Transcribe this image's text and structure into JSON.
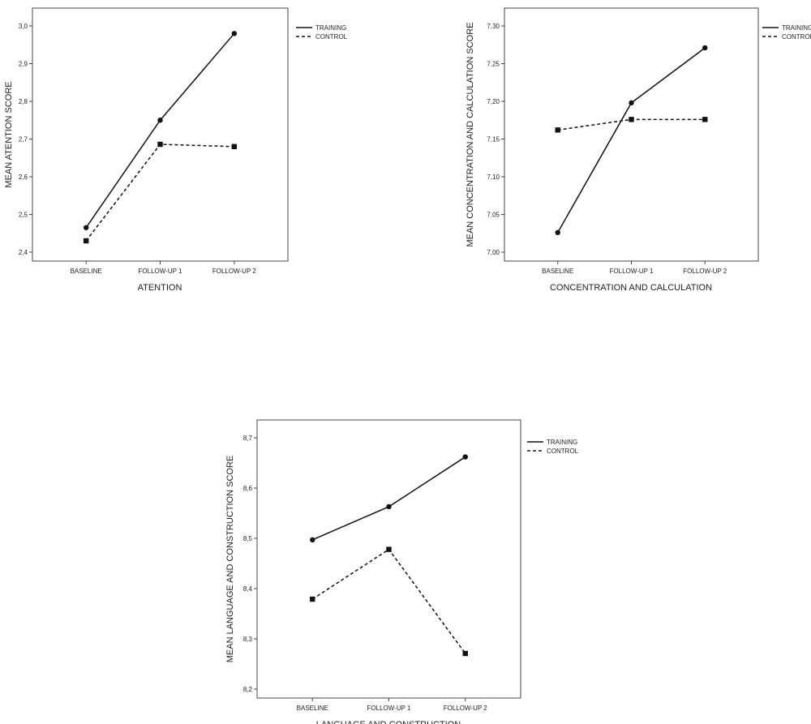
{
  "chart_data": [
    {
      "type": "line",
      "categories": [
        "BASELINE",
        "FOLLOW-UP 1",
        "FOLLOW-UP 2"
      ],
      "series": [
        {
          "name": "TRAINING",
          "values": [
            2.465,
            2.75,
            2.98
          ],
          "line_style": "solid",
          "marker": "circle"
        },
        {
          "name": "CONTROL",
          "values": [
            2.43,
            2.686,
            2.68
          ],
          "line_style": "dashed",
          "marker": "square"
        }
      ],
      "title": "",
      "xlabel": "ATENTION",
      "ylabel": "MEAN ATENTION SCORE",
      "ylim": [
        2.4,
        3.0
      ],
      "yticks": [
        "2,4",
        "2,5",
        "2,6",
        "2,7",
        "2,8",
        "2,9",
        "3,0"
      ],
      "legend_position": "right",
      "grid": false
    },
    {
      "type": "line",
      "categories": [
        "BASELINE",
        "FOLLOW-UP 1",
        "FOLLOW-UP 2"
      ],
      "series": [
        {
          "name": "TRAINING",
          "values": [
            7.026,
            7.198,
            7.271
          ],
          "line_style": "solid",
          "marker": "circle"
        },
        {
          "name": "CONTROL",
          "values": [
            7.162,
            7.176,
            7.176
          ],
          "line_style": "dashed",
          "marker": "square"
        }
      ],
      "title": "",
      "xlabel": "CONCENTRATION AND CALCULATION",
      "ylabel": "MEAN CONCENTRATION AND CALCULATION SCORE",
      "ylim": [
        7.0,
        7.3
      ],
      "yticks": [
        "7,00",
        "7,05",
        "7,10",
        "7,15",
        "7,20",
        "7,25",
        "7,30"
      ],
      "legend_position": "right",
      "grid": false
    },
    {
      "type": "line",
      "categories": [
        "BASELINE",
        "FOLLOW-UP 1",
        "FOLLOW-UP 2"
      ],
      "series": [
        {
          "name": "TRAINING",
          "values": [
            8.497,
            8.563,
            8.662
          ],
          "line_style": "solid",
          "marker": "circle"
        },
        {
          "name": "CONTROL",
          "values": [
            8.379,
            8.478,
            8.271
          ],
          "line_style": "dashed",
          "marker": "square"
        }
      ],
      "title": "",
      "xlabel": "LANGUAGE AND CONSTRUCTION",
      "ylabel": "MEAN LANGUAGE AND CONSTRUCTION SCORE",
      "ylim": [
        8.2,
        8.7
      ],
      "yticks": [
        "8,2",
        "8,3",
        "8,4",
        "8,5",
        "8,6",
        "8,7"
      ],
      "legend_position": "right",
      "grid": false
    }
  ]
}
